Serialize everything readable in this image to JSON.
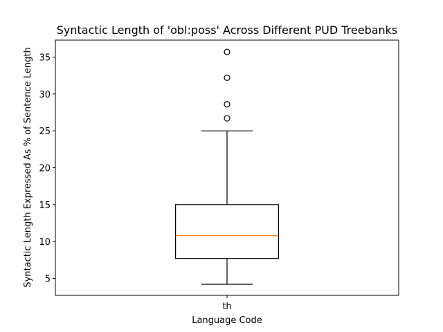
{
  "chart_data": {
    "type": "boxplot",
    "title": "Syntactic Length of 'obl:poss' Across Different PUD Treebanks",
    "xlabel": "Language Code",
    "ylabel": "Syntactic Length Expressed As % of Sentence Length",
    "categories": [
      "th"
    ],
    "ylim": [
      2.7,
      37.3
    ],
    "yticks": [
      5,
      10,
      15,
      20,
      25,
      30,
      35
    ],
    "grid": false,
    "boxes": [
      {
        "category": "th",
        "whisker_low": 4.2,
        "q1": 7.7,
        "median": 10.8,
        "q3": 15.0,
        "whisker_high": 25.0,
        "outliers": [
          26.7,
          28.6,
          32.2,
          35.7
        ]
      }
    ],
    "colors": {
      "box": "#000000",
      "median": "#ff7f0e",
      "outlier": "#000000"
    }
  }
}
